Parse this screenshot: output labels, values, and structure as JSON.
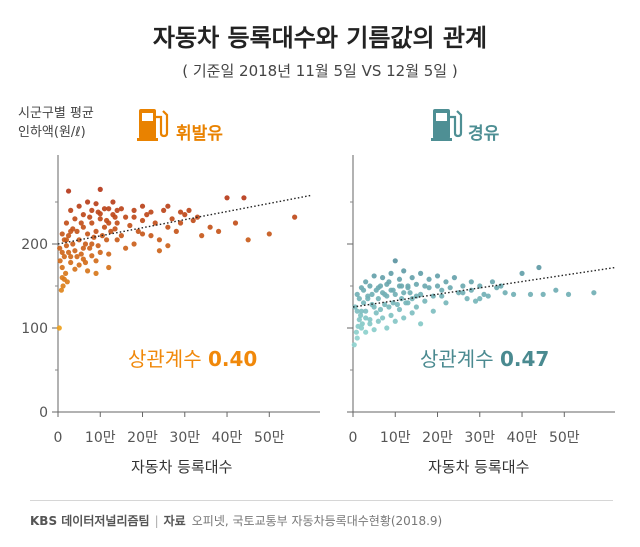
{
  "header": {
    "title": "자동차 등록대수와 기름값의 관계",
    "subtitle": "( 기준일 2018년 11월 5일 VS 12월 5일 )"
  },
  "y_axis_label": [
    "시군구별 평균",
    "인하액(원/ℓ)"
  ],
  "footer": {
    "brand": "KBS 데이터저널리즘팀",
    "separator": "|",
    "source_label": "자료",
    "source_text": "오피넷, 국토교통부 자동차등록대수현황(2018.9)"
  },
  "icons": {
    "gasoline": "gas-pump-icon",
    "diesel": "gas-pump-icon"
  },
  "colors": {
    "gasoline_accent": "#e98200",
    "gasoline_dark": "#b5381a",
    "gasoline_light": "#f2a81c",
    "diesel_accent": "#4e8f94",
    "diesel_dark": "#2c5c78",
    "diesel_light": "#8fd3cf"
  },
  "chart_data": [
    {
      "type": "scatter",
      "title": "휘발유",
      "xlabel": "자동차 등록대수",
      "ylabel": "시군구별 평균 인하액(원/ℓ)",
      "x_unit": "만 대",
      "x_ticks": [
        "0",
        "10만",
        "20만",
        "30만",
        "40만",
        "50만"
      ],
      "y_ticks": [
        "0",
        "100",
        "200"
      ],
      "xlim": [
        0,
        62
      ],
      "ylim": [
        0,
        275
      ],
      "grid": false,
      "annotation": {
        "label": "상관계수",
        "value": "0.40"
      },
      "trend": {
        "style": "dotted",
        "points": [
          [
            0,
            200
          ],
          [
            60,
            258
          ]
        ]
      },
      "points": [
        [
          0.3,
          100
        ],
        [
          0.8,
          145
        ],
        [
          1.2,
          150
        ],
        [
          1.5,
          158
        ],
        [
          1.0,
          172
        ],
        [
          0.5,
          180
        ],
        [
          1.8,
          165
        ],
        [
          2.2,
          155
        ],
        [
          0.4,
          195
        ],
        [
          1.0,
          190
        ],
        [
          1.5,
          205
        ],
        [
          2.0,
          198
        ],
        [
          2.5,
          210
        ],
        [
          3.0,
          185
        ],
        [
          3.5,
          200
        ],
        [
          4.0,
          192
        ],
        [
          4.5,
          215
        ],
        [
          5.0,
          205
        ],
        [
          5.5,
          188
        ],
        [
          6.0,
          220
        ],
        [
          6.5,
          200
        ],
        [
          7.0,
          212
        ],
        [
          7.5,
          195
        ],
        [
          8.0,
          225
        ],
        [
          8.5,
          208
        ],
        [
          9.0,
          215
        ],
        [
          9.5,
          198
        ],
        [
          10.0,
          230
        ],
        [
          10.5,
          210
        ],
        [
          11.0,
          220
        ],
        [
          11.5,
          205
        ],
        [
          12.0,
          225
        ],
        [
          12.5,
          215
        ],
        [
          13.0,
          235
        ],
        [
          13.5,
          218
        ],
        [
          14.0,
          225
        ],
        [
          15.0,
          210
        ],
        [
          16.0,
          232
        ],
        [
          17.0,
          222
        ],
        [
          18.0,
          240
        ],
        [
          19.0,
          215
        ],
        [
          20.0,
          228
        ],
        [
          21.0,
          235
        ],
        [
          22.0,
          210
        ],
        [
          23.0,
          225
        ],
        [
          24.0,
          205
        ],
        [
          25.0,
          240
        ],
        [
          26.0,
          220
        ],
        [
          27.0,
          230
        ],
        [
          28.0,
          215
        ],
        [
          29.0,
          225
        ],
        [
          30.0,
          235
        ],
        [
          32.0,
          228
        ],
        [
          34.0,
          210
        ],
        [
          36.0,
          220
        ],
        [
          38.0,
          215
        ],
        [
          40.0,
          255
        ],
        [
          42.0,
          225
        ],
        [
          44.0,
          255
        ],
        [
          45.0,
          205
        ],
        [
          50.0,
          212
        ],
        [
          56.0,
          232
        ],
        [
          1.0,
          212
        ],
        [
          2.0,
          225
        ],
        [
          3.0,
          240
        ],
        [
          2.5,
          263
        ],
        [
          4.0,
          230
        ],
        [
          5.0,
          245
        ],
        [
          6.0,
          235
        ],
        [
          7.0,
          250
        ],
        [
          8.0,
          240
        ],
        [
          9.0,
          248
        ],
        [
          10.0,
          265
        ],
        [
          11.0,
          242
        ],
        [
          13.0,
          250
        ],
        [
          14.0,
          240
        ],
        [
          3.0,
          178
        ],
        [
          4.0,
          170
        ],
        [
          6.0,
          182
        ],
        [
          8.0,
          186
        ],
        [
          12.0,
          188
        ],
        [
          16.0,
          195
        ],
        [
          24.0,
          192
        ],
        [
          5.0,
          175
        ],
        [
          7.0,
          168
        ],
        [
          9.0,
          180
        ],
        [
          15.0,
          242
        ],
        [
          20.0,
          245
        ],
        [
          22.0,
          238
        ],
        [
          26.0,
          245
        ],
        [
          18.0,
          232
        ],
        [
          10.0,
          236
        ],
        [
          12.0,
          242
        ],
        [
          3.5,
          218
        ],
        [
          5.5,
          225
        ],
        [
          7.5,
          232
        ],
        [
          9.5,
          238
        ],
        [
          11.5,
          228
        ],
        [
          13.5,
          232
        ],
        [
          2.0,
          205
        ],
        [
          3.0,
          215
        ],
        [
          6.0,
          195
        ],
        [
          8.0,
          200
        ],
        [
          10.0,
          190
        ],
        [
          14.0,
          205
        ],
        [
          18.0,
          200
        ],
        [
          20.0,
          212
        ],
        [
          26.0,
          198
        ],
        [
          29.0,
          238
        ],
        [
          31.0,
          240
        ],
        [
          33.0,
          232
        ],
        [
          1.5,
          185
        ],
        [
          2.5,
          190
        ],
        [
          4.5,
          185
        ],
        [
          6.5,
          178
        ],
        [
          9.0,
          165
        ],
        [
          12.0,
          172
        ],
        [
          1.0,
          160
        ]
      ]
    },
    {
      "type": "scatter",
      "title": "경유",
      "xlabel": "자동차 등록대수",
      "ylabel": "시군구별 평균 인하액(원/ℓ)",
      "x_unit": "만 대",
      "x_ticks": [
        "0",
        "10만",
        "20만",
        "30만",
        "40만",
        "50만"
      ],
      "y_ticks": [
        "0",
        "100",
        "200"
      ],
      "xlim": [
        0,
        62
      ],
      "ylim": [
        0,
        275
      ],
      "grid": false,
      "annotation": {
        "label": "상관계수",
        "value": "0.47"
      },
      "trend": {
        "style": "dotted",
        "points": [
          [
            0,
            125
          ],
          [
            62,
            172
          ]
        ]
      },
      "points": [
        [
          0.3,
          80
        ],
        [
          0.8,
          95
        ],
        [
          1.2,
          102
        ],
        [
          1.5,
          110
        ],
        [
          1.0,
          120
        ],
        [
          0.5,
          125
        ],
        [
          1.8,
          115
        ],
        [
          2.2,
          105
        ],
        [
          2.5,
          130
        ],
        [
          3.0,
          120
        ],
        [
          3.5,
          135
        ],
        [
          4.0,
          110
        ],
        [
          4.5,
          140
        ],
        [
          5.0,
          125
        ],
        [
          5.5,
          118
        ],
        [
          6.0,
          135
        ],
        [
          6.5,
          122
        ],
        [
          7.0,
          142
        ],
        [
          7.5,
          128
        ],
        [
          8.0,
          138
        ],
        [
          8.5,
          125
        ],
        [
          9.0,
          145
        ],
        [
          9.5,
          130
        ],
        [
          10.0,
          140
        ],
        [
          10.5,
          128
        ],
        [
          11.0,
          150
        ],
        [
          11.5,
          135
        ],
        [
          12.0,
          142
        ],
        [
          12.5,
          130
        ],
        [
          13.0,
          148
        ],
        [
          14.0,
          135
        ],
        [
          15.0,
          152
        ],
        [
          16.0,
          140
        ],
        [
          17.0,
          132
        ],
        [
          18.0,
          148
        ],
        [
          19.0,
          138
        ],
        [
          20.0,
          150
        ],
        [
          21.0,
          145
        ],
        [
          22.0,
          130
        ],
        [
          23.0,
          148
        ],
        [
          24.0,
          160
        ],
        [
          25.0,
          142
        ],
        [
          26.0,
          150
        ],
        [
          27.0,
          135
        ],
        [
          28.0,
          145
        ],
        [
          29.0,
          132
        ],
        [
          30.0,
          150
        ],
        [
          31.0,
          140
        ],
        [
          32.0,
          138
        ],
        [
          33.0,
          155
        ],
        [
          35.0,
          150
        ],
        [
          38.0,
          140
        ],
        [
          40.0,
          165
        ],
        [
          42.0,
          140
        ],
        [
          44.0,
          172
        ],
        [
          45.0,
          140
        ],
        [
          48.0,
          145
        ],
        [
          51.0,
          140
        ],
        [
          57.0,
          142
        ],
        [
          1.0,
          140
        ],
        [
          2.0,
          148
        ],
        [
          3.0,
          155
        ],
        [
          4.0,
          150
        ],
        [
          5.0,
          162
        ],
        [
          6.0,
          148
        ],
        [
          7.0,
          160
        ],
        [
          8.0,
          152
        ],
        [
          9.0,
          165
        ],
        [
          10.0,
          180
        ],
        [
          11.0,
          158
        ],
        [
          12.0,
          168
        ],
        [
          13.0,
          150
        ],
        [
          14.0,
          160
        ],
        [
          16.0,
          165
        ],
        [
          18.0,
          158
        ],
        [
          20.0,
          162
        ],
        [
          22.0,
          155
        ],
        [
          2.0,
          100
        ],
        [
          3.0,
          95
        ],
        [
          4.0,
          105
        ],
        [
          5.0,
          98
        ],
        [
          6.0,
          108
        ],
        [
          7.0,
          112
        ],
        [
          8.0,
          100
        ],
        [
          9.0,
          115
        ],
        [
          10.0,
          108
        ],
        [
          12.0,
          112
        ],
        [
          14.0,
          118
        ],
        [
          16.0,
          105
        ],
        [
          19.0,
          120
        ],
        [
          1.5,
          135
        ],
        [
          2.5,
          145
        ],
        [
          3.5,
          138
        ],
        [
          4.5,
          128
        ],
        [
          5.5,
          145
        ],
        [
          6.5,
          150
        ],
        [
          7.5,
          140
        ],
        [
          8.5,
          155
        ],
        [
          9.5,
          145
        ],
        [
          11.5,
          150
        ],
        [
          13.5,
          142
        ],
        [
          15.0,
          138
        ],
        [
          17.0,
          150
        ],
        [
          21.0,
          138
        ],
        [
          26.0,
          142
        ],
        [
          28.0,
          155
        ],
        [
          30.0,
          135
        ],
        [
          34.0,
          148
        ],
        [
          36.0,
          142
        ],
        [
          15.0,
          125
        ],
        [
          13.0,
          130
        ],
        [
          11.0,
          122
        ],
        [
          1.0,
          88
        ],
        [
          2.0,
          120
        ],
        [
          3.0,
          112
        ]
      ]
    }
  ]
}
